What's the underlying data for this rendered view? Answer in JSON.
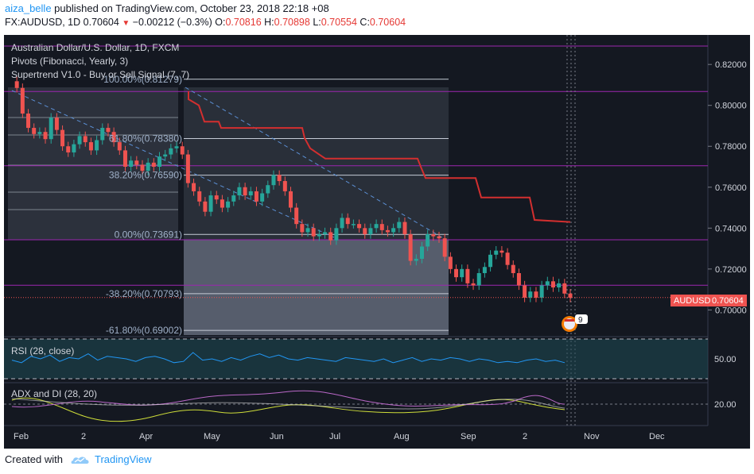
{
  "header": {
    "user": "aiza_belle",
    "published_text": "published on TradingView.com, October 23, 2018 22:18 +08",
    "symbol": "FX:AUDUSD, 1D",
    "last": "0.70604",
    "arrow": "▼",
    "change": "−0.00212 (−0.3%)",
    "o_label": "O:",
    "o_val": "0.70816",
    "h_label": "H:",
    "h_val": "0.70898",
    "l_label": "L:",
    "l_val": "0.70554",
    "c_label": "C:",
    "c_val": "0.70604"
  },
  "legend": {
    "title": "Australian Dollar/U.S. Dollar, 1D, FXCM",
    "pivots": "Pivots (Fibonacci, Yearly, 3)",
    "supertrend": "Supertrend V1.0 - Buy or Sell Signal (7, 7)",
    "rsi": "RSI (28, close)",
    "adx": "ADX and DI (28, 20)"
  },
  "price_badge": {
    "label": "AUDUSD",
    "value": "0.70604"
  },
  "event_badge": "9",
  "footer": {
    "created": "Created with",
    "brand": "TradingView"
  },
  "colors": {
    "background": "#141821",
    "up": "#26a69a",
    "down": "#ef5350",
    "pivot": "#9c27b0",
    "supertrend": "#d32f2f",
    "rsi": "#2196f3",
    "adx_plus": "#ba68c8",
    "adx_minus": "#cddc39"
  },
  "chart_data": {
    "type": "line",
    "title": "Australian Dollar/U.S. Dollar, 1D, FXCM",
    "x_ticks": [
      "Feb",
      "2",
      "Apr",
      "May",
      "Jun",
      "Jul",
      "Aug",
      "Sep",
      "2",
      "Nov",
      "Dec"
    ],
    "y_ticks": [
      "0.82000",
      "0.80000",
      "0.78000",
      "0.76000",
      "0.74000",
      "0.72000",
      "0.70000"
    ],
    "ylim": [
      0.6885,
      0.8321
    ],
    "fib_levels": [
      {
        "label": "100.00%(0.81279)",
        "value": 0.81279
      },
      {
        "label": "61.80%(0.78380)",
        "value": 0.7838
      },
      {
        "label": "38.20%(0.76590)",
        "value": 0.7659
      },
      {
        "label": "0.00%(0.73691)",
        "value": 0.73691
      },
      {
        "label": "-38.20%(0.70793)",
        "value": 0.70793
      },
      {
        "label": "-61.80%(0.69002)",
        "value": 0.69002
      }
    ],
    "pivot_levels": [
      0.829,
      0.8068,
      0.7705,
      0.7343,
      0.7121
    ],
    "price_path": [
      0.8118,
      0.8085,
      0.796,
      0.789,
      0.786,
      0.787,
      0.7835,
      0.794,
      0.788,
      0.78,
      0.777,
      0.781,
      0.785,
      0.782,
      0.778,
      0.783,
      0.789,
      0.787,
      0.782,
      0.778,
      0.77,
      0.773,
      0.771,
      0.768,
      0.772,
      0.77,
      0.775,
      0.776,
      0.779,
      0.78,
      0.776,
      0.762,
      0.758,
      0.753,
      0.748,
      0.756,
      0.754,
      0.75,
      0.753,
      0.756,
      0.76,
      0.756,
      0.758,
      0.753,
      0.757,
      0.761,
      0.766,
      0.763,
      0.758,
      0.75,
      0.742,
      0.738,
      0.74,
      0.736,
      0.737,
      0.738,
      0.734,
      0.74,
      0.745,
      0.742,
      0.742,
      0.74,
      0.737,
      0.74,
      0.742,
      0.739,
      0.738,
      0.74,
      0.743,
      0.737,
      0.724,
      0.725,
      0.731,
      0.737,
      0.736,
      0.735,
      0.726,
      0.72,
      0.716,
      0.72,
      0.713,
      0.712,
      0.718,
      0.721,
      0.727,
      0.729,
      0.728,
      0.722,
      0.718,
      0.712,
      0.706,
      0.709,
      0.706,
      0.712,
      0.714,
      0.711,
      0.713,
      0.708,
      0.706
    ],
    "price_x_range": [
      9,
      712
    ],
    "supertrend": [
      {
        "x": 232,
        "y": 0.807
      },
      {
        "x": 232,
        "y": 0.803
      },
      {
        "x": 245,
        "y": 0.8
      },
      {
        "x": 252,
        "y": 0.792
      },
      {
        "x": 270,
        "y": 0.792
      },
      {
        "x": 273,
        "y": 0.789
      },
      {
        "x": 375,
        "y": 0.789
      },
      {
        "x": 378,
        "y": 0.784
      },
      {
        "x": 385,
        "y": 0.779
      },
      {
        "x": 400,
        "y": 0.775
      },
      {
        "x": 404,
        "y": 0.774
      },
      {
        "x": 520,
        "y": 0.774
      },
      {
        "x": 524,
        "y": 0.77
      },
      {
        "x": 530,
        "y": 0.7645
      },
      {
        "x": 593,
        "y": 0.7645
      },
      {
        "x": 600,
        "y": 0.755
      },
      {
        "x": 661,
        "y": 0.755
      },
      {
        "x": 667,
        "y": 0.744
      },
      {
        "x": 712,
        "y": 0.743
      }
    ],
    "rsi": [
      49,
      47,
      52,
      50,
      53,
      48,
      51,
      50,
      54,
      49,
      52,
      51,
      50,
      48,
      51,
      52,
      50,
      47,
      48,
      55,
      49,
      50,
      48,
      51,
      49,
      52,
      54,
      51,
      53,
      50,
      49,
      51,
      50,
      49,
      48,
      51,
      50,
      49,
      48,
      50,
      47,
      49,
      51,
      48,
      50,
      49,
      51,
      50,
      48,
      50,
      49,
      47,
      48,
      47,
      49,
      50,
      48,
      49,
      47
    ],
    "rsi_y_ticks": [
      "50.00"
    ],
    "adx_y_ticks": [
      "20.00"
    ],
    "badge_value": 0.70604
  }
}
